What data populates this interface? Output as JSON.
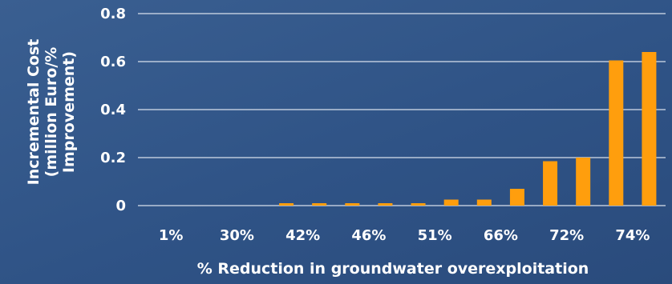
{
  "chart_data": {
    "type": "bar",
    "categories": [
      "1%",
      "",
      "30%",
      "",
      "42%",
      "",
      "46%",
      "",
      "51%",
      "",
      "66%",
      "",
      "72%",
      "",
      "74%",
      ""
    ],
    "values": [
      0,
      0,
      0,
      0,
      0.01,
      0.01,
      0.01,
      0.01,
      0.01,
      0.025,
      0.025,
      0.07,
      0.185,
      0.2,
      0.605,
      0.64
    ],
    "xlabel": "% Reduction in groundwater overexploitation",
    "ylabel_lines": [
      "Incremental Cost",
      "(million Euro/%",
      "Improvement)"
    ],
    "ylim": [
      0,
      0.8
    ],
    "yticks": [
      0,
      0.2,
      0.4,
      0.6,
      0.8
    ],
    "ytick_labels": [
      "0",
      "0.2",
      "0.4",
      "0.6",
      "0.8"
    ],
    "grid": true,
    "legend": "none"
  },
  "colors": {
    "bar": "#ff9e0d",
    "grid": "#d8e0ec",
    "text": "#ffffff"
  }
}
